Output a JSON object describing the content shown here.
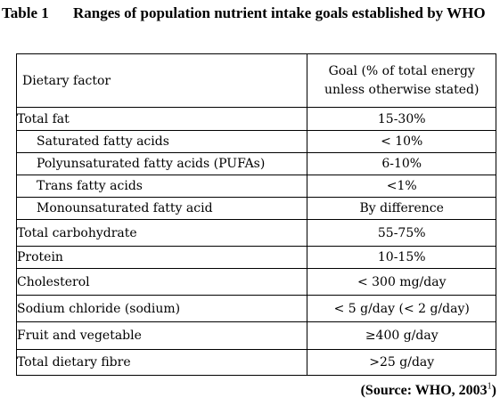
{
  "caption": {
    "label": "Table 1",
    "text": "Ranges of population nutrient intake goals established by WHO"
  },
  "table": {
    "headers": {
      "factor": "Dietary factor",
      "goal_line1": "Goal (% of total energy",
      "goal_line2": "unless otherwise stated)"
    },
    "rows": [
      {
        "factor": "Total fat",
        "goal": "15-30%",
        "sub": false,
        "height": 26
      },
      {
        "factor": "Saturated fatty acids",
        "goal": "< 10%",
        "sub": true,
        "height": 25
      },
      {
        "factor": "Polyunsaturated fatty acids (PUFAs)",
        "goal": "6-10%",
        "sub": true,
        "height": 25
      },
      {
        "factor": "Trans fatty acids",
        "goal": "<1%",
        "sub": true,
        "height": 25
      },
      {
        "factor": "Monounsaturated fatty acid",
        "goal": "By difference",
        "sub": true,
        "height": 25
      },
      {
        "factor": "Total carbohydrate",
        "goal": "55-75%",
        "sub": false,
        "height": 30
      },
      {
        "factor": "Protein",
        "goal": "10-15%",
        "sub": false,
        "height": 25
      },
      {
        "factor": "Cholesterol",
        "goal": "< 300 mg/day",
        "sub": false,
        "height": 30
      },
      {
        "factor": "Sodium chloride (sodium)",
        "goal": "< 5 g/day (< 2 g/day)",
        "sub": false,
        "height": 30
      },
      {
        "factor": "Fruit and vegetable",
        "goal": "≥400 g/day",
        "sub": false,
        "height": 31
      },
      {
        "factor": "Total dietary fibre",
        "goal": ">25 g/day",
        "sub": false,
        "height": 29
      }
    ]
  },
  "source": {
    "text": "(Source: WHO, 2003",
    "superscript": "1",
    "close": ")"
  }
}
